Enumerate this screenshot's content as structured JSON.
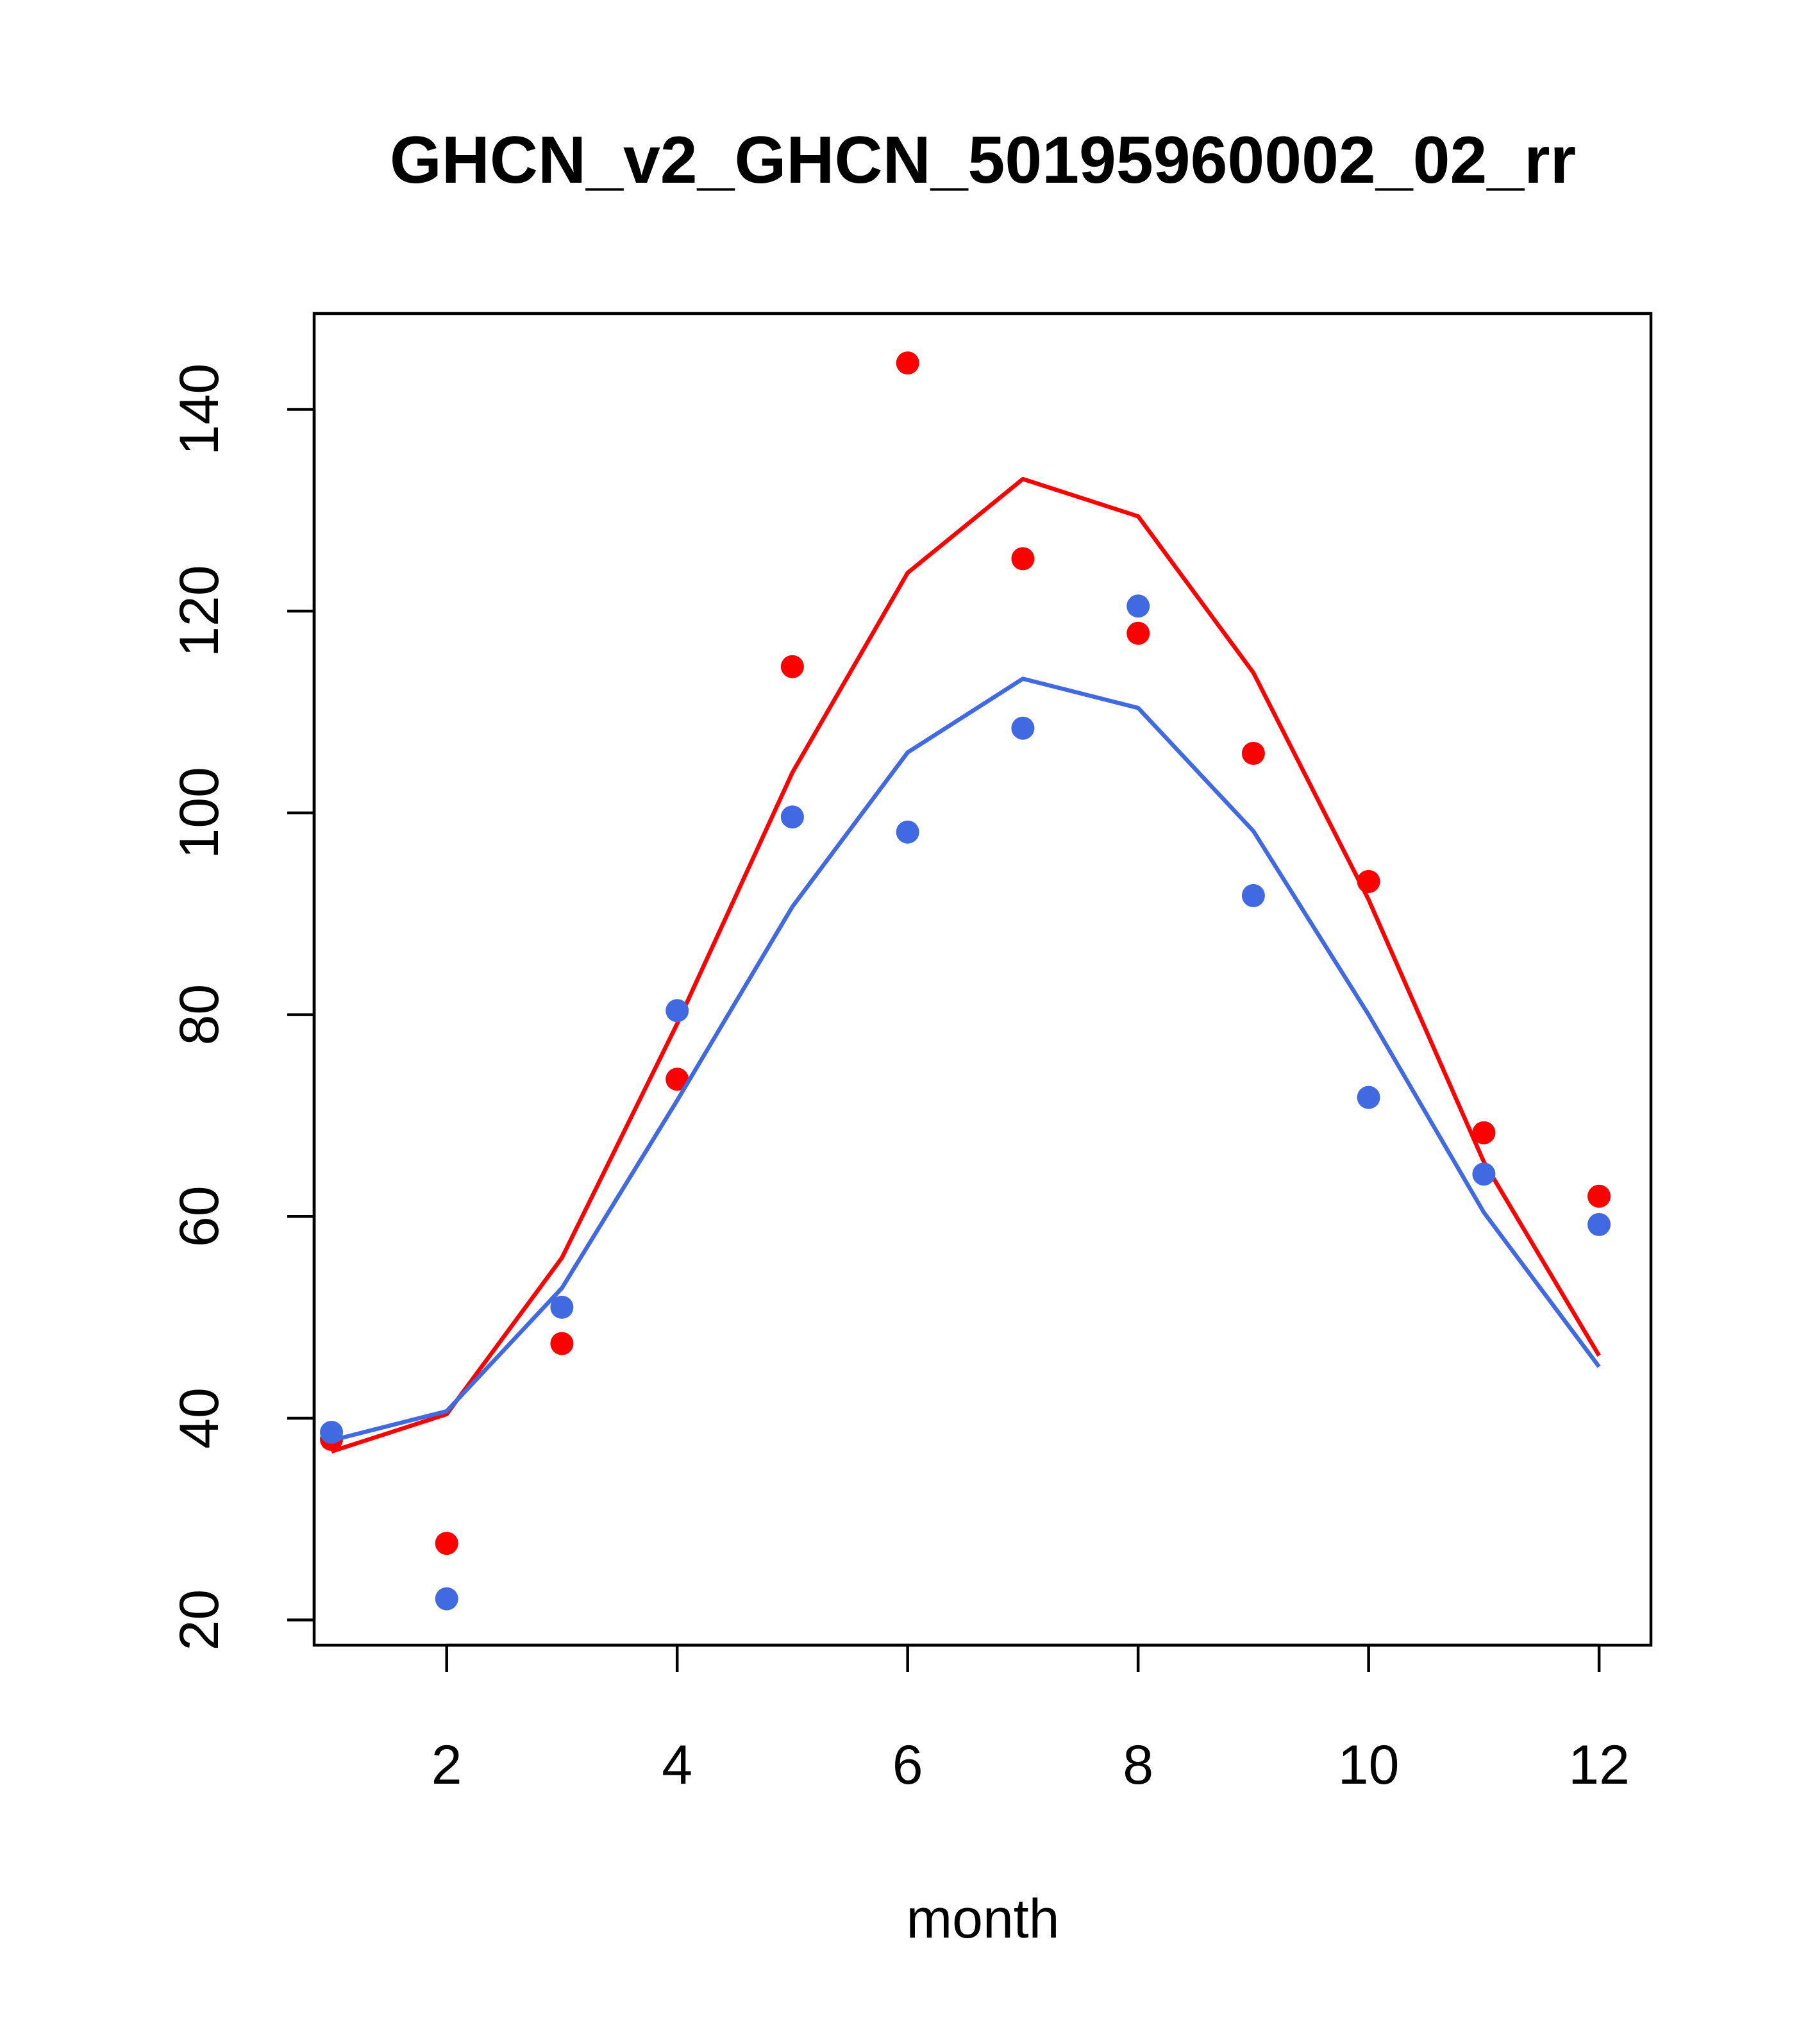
{
  "chart_data": {
    "type": "line",
    "title": "GHCN_v2_GHCN_50195960002_02_rr",
    "xlabel": "month",
    "ylabel": "",
    "xlim": [
      0.85,
      12.45
    ],
    "ylim": [
      17.5,
      149.5
    ],
    "xticks": [
      2,
      4,
      6,
      8,
      10,
      12
    ],
    "yticks": [
      20,
      40,
      60,
      80,
      100,
      120,
      140
    ],
    "grid": false,
    "series": [
      {
        "color": "#ff0000",
        "x": [
          1,
          2,
          3,
          4,
          5,
          6,
          7,
          8,
          9,
          10,
          11,
          12
        ],
        "line": [
          36.7,
          40.4,
          55.9,
          79.1,
          104.0,
          123.8,
          133.1,
          129.4,
          113.9,
          91.4,
          65.4,
          46.2
        ],
        "points": [
          37.9,
          27.6,
          47.4,
          73.6,
          114.5,
          144.6,
          125.2,
          117.8,
          105.9,
          93.2,
          68.3,
          62.0
        ]
      },
      {
        "color": "#4169e1",
        "x": [
          1,
          2,
          3,
          4,
          5,
          6,
          7,
          8,
          9,
          10,
          11,
          12
        ],
        "line": [
          37.8,
          40.7,
          52.9,
          71.5,
          90.7,
          106.0,
          113.3,
          110.4,
          98.2,
          80.0,
          60.4,
          45.1
        ],
        "points": [
          38.6,
          22.1,
          51.0,
          80.4,
          99.6,
          98.1,
          108.4,
          120.5,
          91.8,
          71.8,
          64.2,
          59.2
        ]
      }
    ]
  }
}
